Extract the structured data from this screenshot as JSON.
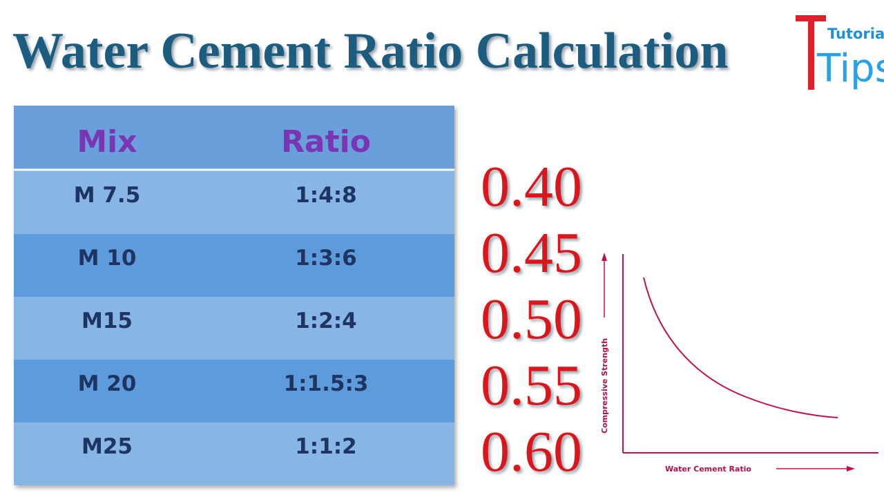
{
  "header": {
    "title": "Water Cement Ratio Calculation",
    "logo_top": "Tutorials",
    "logo_bottom": "Tips"
  },
  "table": {
    "columns": [
      "Mix",
      "Ratio"
    ],
    "rows": [
      [
        "M 7.5",
        "1:4:8"
      ],
      [
        "M 10",
        "1:3:6"
      ],
      [
        "M15",
        "1:2:4"
      ],
      [
        "M 20",
        "1:1.5:3"
      ],
      [
        "M25",
        "1:1:2"
      ]
    ]
  },
  "water_cement_ratios": [
    "0.40",
    "0.45",
    "0.50",
    "0.55",
    "0.60"
  ],
  "graph": {
    "y_label": "Compressive Strength",
    "x_label": "Water Cement Ratio"
  }
}
